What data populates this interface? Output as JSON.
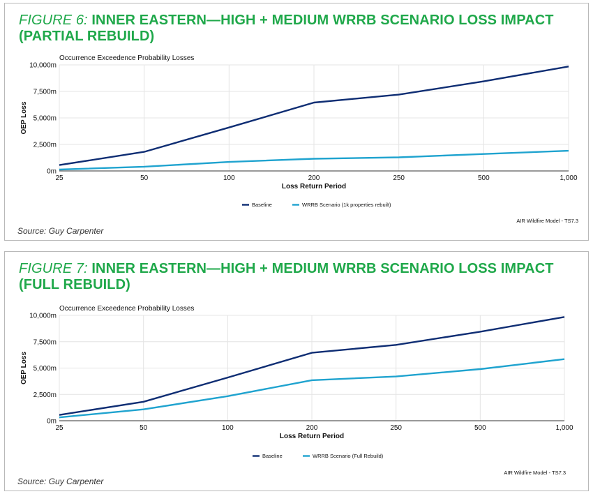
{
  "source_label": "Source: Guy Carpenter",
  "figures": [
    {
      "label": "FIGURE 6:",
      "title": "INNER EASTERN—HIGH + MEDIUM WRRB SCENARIO LOSS IMPACT (PARTIAL REBUILD)",
      "model_note": "AIR Wildfire Model - TS7.3",
      "colors": {
        "baseline": "#0e2d73",
        "scenario": "#1fa3cf"
      },
      "chart_data": {
        "type": "line",
        "title": "Occurrence Exceedence Probability Losses",
        "xlabel": "Loss Return Period",
        "ylabel": "OEP Loss",
        "categories": [
          "25",
          "50",
          "100",
          "200",
          "250",
          "500",
          "1,000"
        ],
        "ylim": [
          0,
          10000
        ],
        "yticks": [
          0,
          2500,
          5000,
          7500,
          10000
        ],
        "ytick_labels": [
          "0m",
          "2,500m",
          "5,000m",
          "7,500m",
          "10,000m"
        ],
        "grid": true,
        "legend": "bottom",
        "series": [
          {
            "name": "Baseline",
            "values": [
              550,
              1800,
              4100,
              6450,
              7200,
              8450,
              9850
            ]
          },
          {
            "name": "WRRB Scenario (1k properties rebuilt)",
            "values": [
              130,
              400,
              850,
              1150,
              1280,
              1600,
              1900
            ]
          }
        ]
      }
    },
    {
      "label": "FIGURE 7:",
      "title": "INNER EASTERN—HIGH + MEDIUM WRRB SCENARIO LOSS IMPACT (FULL REBUILD)",
      "model_note": "AIR Wildfire Model - TS7.3",
      "colors": {
        "baseline": "#0e2d73",
        "scenario": "#1fa3cf"
      },
      "chart_data": {
        "type": "line",
        "title": "Occurrence Exceedence Probability Losses",
        "xlabel": "Loss Return Period",
        "ylabel": "OEP Loss",
        "categories": [
          "25",
          "50",
          "100",
          "200",
          "250",
          "500",
          "1,000"
        ],
        "ylim": [
          0,
          10000
        ],
        "yticks": [
          0,
          2500,
          5000,
          7500,
          10000
        ],
        "ytick_labels": [
          "0m",
          "2,500m",
          "5,000m",
          "7,500m",
          "10,000m"
        ],
        "grid": true,
        "legend": "bottom",
        "series": [
          {
            "name": "Baseline",
            "values": [
              550,
              1800,
              4100,
              6450,
              7200,
              8450,
              9850
            ]
          },
          {
            "name": "WRRB Scenario (Full Rebuild)",
            "values": [
              320,
              1080,
              2330,
              3850,
              4200,
              4900,
              5850
            ]
          }
        ]
      }
    }
  ]
}
